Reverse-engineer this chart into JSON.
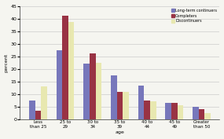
{
  "categories": [
    "Less\nthan 25",
    "25 to\n29",
    "30 to\n34",
    "35 to\n39",
    "40 to\n44",
    "45 to\n49",
    "Greater\nthan 50"
  ],
  "long_term": [
    7.5,
    27.5,
    22,
    17.5,
    13.5,
    6.5,
    5
  ],
  "completers": [
    3.5,
    41,
    26,
    11,
    7.5,
    6.5,
    4
  ],
  "discontinuers": [
    13,
    38.5,
    22.5,
    11,
    7,
    5.5,
    2.5
  ],
  "colors": {
    "long_term": "#7777bb",
    "completers": "#993344",
    "discontinuers": "#e8e8b0"
  },
  "legend_labels": [
    "Long-term continuers",
    "Completers",
    "Discontinuers"
  ],
  "ylabel": "percent",
  "xlabel": "age",
  "ylim": [
    0,
    45
  ],
  "yticks": [
    0,
    5,
    10,
    15,
    20,
    25,
    30,
    35,
    40,
    45
  ],
  "background_color": "#f5f5f0",
  "grid_color": "#cccccc",
  "fig_width": 2.85,
  "fig_height": 1.77,
  "bar_width": 0.22
}
